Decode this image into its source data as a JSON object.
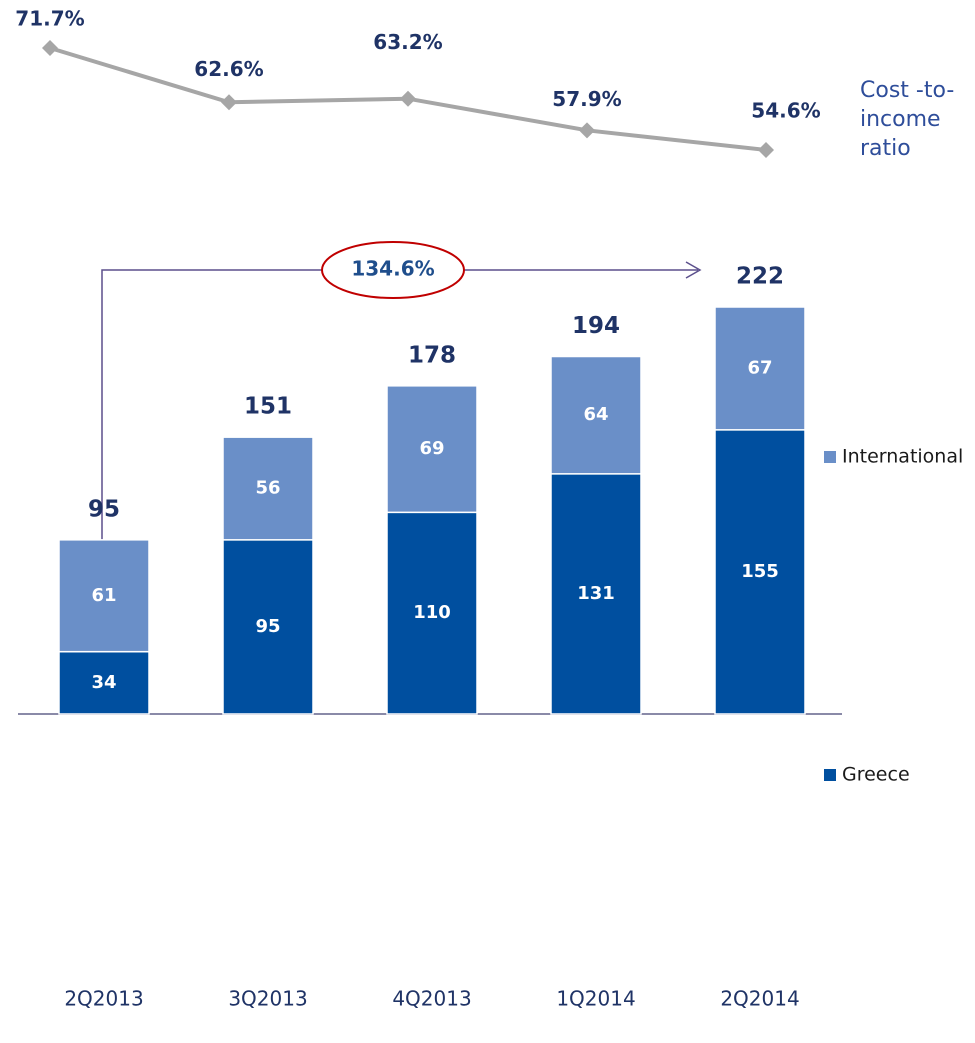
{
  "chart_data": {
    "type": "bar",
    "categories": [
      "2Q2013",
      "3Q2013",
      "4Q2013",
      "1Q2014",
      "2Q2014"
    ],
    "stacked": true,
    "series": [
      {
        "name": "Greece",
        "color": "#004f9f",
        "values": [
          34,
          95,
          110,
          131,
          155
        ]
      },
      {
        "name": "International",
        "color": "#6a8fc8",
        "values": [
          61,
          56,
          69,
          64,
          67
        ]
      }
    ],
    "totals": [
      95,
      151,
      178,
      194,
      222
    ],
    "line": {
      "name": "Cost -to-income ratio",
      "color": "#a6a6a6",
      "values": [
        71.7,
        62.6,
        63.2,
        57.9,
        54.6
      ],
      "value_labels": [
        "71.7%",
        "62.6%",
        "63.2%",
        "57.9%",
        "54.6%"
      ]
    },
    "annotation": "134.6%"
  }
}
